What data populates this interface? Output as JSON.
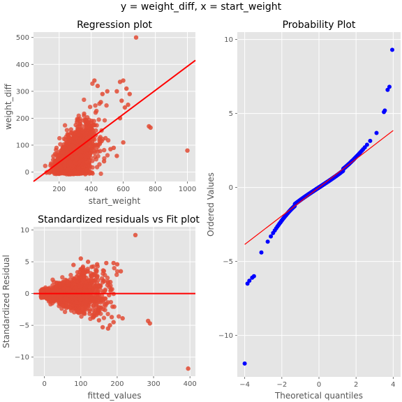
{
  "figure": {
    "suptitle": "y = weight_diff, x = start_weight",
    "colors": {
      "panel_bg": "#E5E5E5",
      "grid": "#FFFFFF",
      "points": "#E24A33",
      "fit_line": "#FF0000",
      "qq_points": "#0000FF",
      "qq_line": "#FF0000"
    }
  },
  "chart_data": [
    {
      "id": "regression",
      "type": "scatter",
      "title": "Regression plot",
      "xlabel": "start_weight",
      "ylabel": "weight_diff",
      "xlim": [
        40,
        1050
      ],
      "ylim": [
        -35,
        520
      ],
      "xticks": [
        200,
        400,
        600,
        800,
        1000
      ],
      "xtick_labels": [
        "200",
        "400",
        "600",
        "800",
        "1000"
      ],
      "yticks": [
        0,
        100,
        200,
        300,
        400,
        500
      ],
      "ytick_labels": [
        "0",
        "100",
        "200",
        "300",
        "400",
        "500"
      ],
      "grid": true,
      "fit_line": {
        "x": [
          40,
          1050
        ],
        "y": [
          -35,
          415
        ]
      },
      "outliers": [
        {
          "x": 680,
          "y": 500
        },
        {
          "x": 1000,
          "y": 80
        },
        {
          "x": 760,
          "y": 170
        },
        {
          "x": 770,
          "y": 165
        },
        {
          "x": 600,
          "y": 340
        },
        {
          "x": 580,
          "y": 335
        },
        {
          "x": 620,
          "y": 310
        },
        {
          "x": 640,
          "y": 290
        },
        {
          "x": 610,
          "y": 240
        },
        {
          "x": 590,
          "y": 265
        },
        {
          "x": 630,
          "y": 250
        },
        {
          "x": 560,
          "y": 300
        },
        {
          "x": 540,
          "y": 90
        },
        {
          "x": 520,
          "y": 85
        },
        {
          "x": 600,
          "y": 110
        },
        {
          "x": 560,
          "y": 60
        },
        {
          "x": 480,
          "y": 40
        },
        {
          "x": 580,
          "y": 200
        },
        {
          "x": 420,
          "y": 340
        },
        {
          "x": 440,
          "y": 320
        },
        {
          "x": 470,
          "y": 290
        },
        {
          "x": 500,
          "y": 300
        },
        {
          "x": 460,
          "y": 260
        }
      ]
    },
    {
      "id": "residuals",
      "type": "scatter",
      "title": "Standardized residuals vs Fit plot",
      "xlabel": "fitted_values",
      "ylabel": "Standardized Residual",
      "xlim": [
        -30,
        415
      ],
      "ylim": [
        -13,
        10.5
      ],
      "xticks": [
        0,
        100,
        200,
        300,
        400
      ],
      "xtick_labels": [
        "0",
        "100",
        "200",
        "300",
        "400"
      ],
      "yticks": [
        -10,
        -5,
        0,
        5,
        10
      ],
      "ytick_labels": [
        "−10",
        "−5",
        "0",
        "5",
        "10"
      ],
      "grid": true,
      "zero_line": 0,
      "outliers": [
        {
          "x": 250,
          "y": 9.2
        },
        {
          "x": 395,
          "y": -11.8
        },
        {
          "x": 285,
          "y": -4.3
        },
        {
          "x": 290,
          "y": -4.7
        },
        {
          "x": 185,
          "y": -3.7
        },
        {
          "x": 180,
          "y": -5.0
        },
        {
          "x": 190,
          "y": -4.5
        },
        {
          "x": 175,
          "y": -5.5
        },
        {
          "x": 215,
          "y": -3.9
        },
        {
          "x": 160,
          "y": -5.3
        },
        {
          "x": 200,
          "y": 4.6
        },
        {
          "x": 190,
          "y": 4.8
        },
        {
          "x": 170,
          "y": 4.8
        },
        {
          "x": 145,
          "y": 4.6
        },
        {
          "x": 100,
          "y": 5.5
        },
        {
          "x": 120,
          "y": 5.0
        },
        {
          "x": 80,
          "y": 4.5
        },
        {
          "x": 130,
          "y": 4.2
        },
        {
          "x": 150,
          "y": -4.2
        },
        {
          "x": 210,
          "y": 3.5
        }
      ]
    },
    {
      "id": "probability",
      "type": "scatter",
      "title": "Probability Plot",
      "xlabel": "Theoretical quantiles",
      "ylabel": "Ordered Values",
      "xlim": [
        -4.4,
        4.4
      ],
      "ylim": [
        -12.8,
        10.5
      ],
      "xticks": [
        -4,
        -2,
        0,
        2,
        4
      ],
      "xtick_labels": [
        "−4",
        "−2",
        "0",
        "2",
        "4"
      ],
      "yticks": [
        -10,
        -5,
        0,
        5,
        10
      ],
      "ytick_labels": [
        "−10",
        "−5",
        "0",
        "5",
        "10"
      ],
      "grid": true,
      "fit_line": {
        "x": [
          -4.0,
          4.0
        ],
        "y": [
          -3.85,
          3.85
        ]
      },
      "extremes": [
        {
          "x": -4.0,
          "y": -11.9
        },
        {
          "x": -3.85,
          "y": -6.5
        },
        {
          "x": -3.75,
          "y": -6.3
        },
        {
          "x": -3.6,
          "y": -6.1
        },
        {
          "x": -3.5,
          "y": -6.0
        },
        {
          "x": 3.5,
          "y": 5.1
        },
        {
          "x": 3.55,
          "y": 5.2
        },
        {
          "x": 3.7,
          "y": 6.6
        },
        {
          "x": 3.8,
          "y": 6.8
        },
        {
          "x": 3.95,
          "y": 9.3
        }
      ]
    }
  ]
}
